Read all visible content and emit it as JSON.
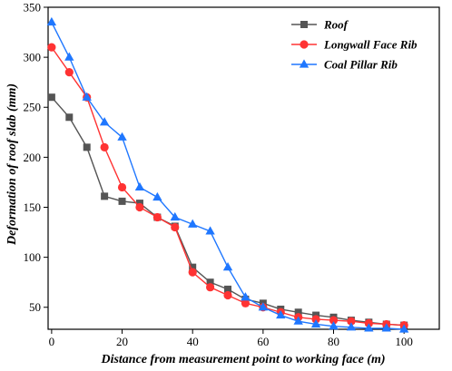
{
  "chart_data": {
    "type": "line",
    "title": "",
    "xlabel": "Distance from measurement point to working face (m)",
    "ylabel": "Deformation of roof slab (mm)",
    "xlim": [
      -1,
      110
    ],
    "ylim": [
      28,
      350
    ],
    "x_ticks": [
      0,
      20,
      40,
      60,
      80,
      100
    ],
    "y_ticks": [
      50,
      100,
      150,
      200,
      250,
      300,
      350
    ],
    "grid": false,
    "legend_position": "top-right",
    "series": [
      {
        "name": "Roof",
        "color": "#555555",
        "marker": "square",
        "x": [
          0,
          5,
          10,
          15,
          20,
          25,
          30,
          35,
          40,
          45,
          50,
          55,
          60,
          65,
          70,
          75,
          80,
          85,
          90,
          95,
          100
        ],
        "y": [
          260,
          240,
          210,
          161,
          156,
          154,
          140,
          131,
          90,
          75,
          68,
          58,
          54,
          48,
          45,
          42,
          40,
          37,
          35,
          33,
          32
        ]
      },
      {
        "name": "Longwall Face Rib",
        "color": "#ff3333",
        "marker": "circle",
        "x": [
          0,
          5,
          10,
          15,
          20,
          25,
          30,
          35,
          40,
          45,
          50,
          55,
          60,
          65,
          70,
          75,
          80,
          85,
          90,
          95,
          100
        ],
        "y": [
          310,
          285,
          260,
          210,
          170,
          150,
          140,
          130,
          85,
          70,
          62,
          54,
          50,
          45,
          40,
          38,
          37,
          36,
          34,
          33,
          32
        ]
      },
      {
        "name": "Coal Pillar Rib",
        "color": "#1f77ff",
        "marker": "triangle",
        "x": [
          0,
          5,
          10,
          15,
          20,
          25,
          30,
          35,
          40,
          45,
          50,
          55,
          60,
          65,
          70,
          75,
          80,
          85,
          90,
          95,
          100
        ],
        "y": [
          335,
          300,
          260,
          235,
          220,
          170,
          160,
          140,
          133,
          126,
          90,
          60,
          50,
          42,
          36,
          33,
          31,
          30,
          29,
          29,
          28
        ]
      }
    ]
  }
}
